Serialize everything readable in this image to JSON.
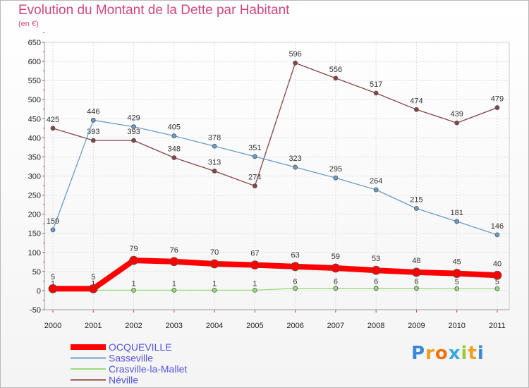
{
  "header": {
    "title": "Evolution du Montant de la Dette par Habitant",
    "subtitle": "(en €)"
  },
  "logo": {
    "text": "Proxiti"
  },
  "colors": {
    "OCQUEVILLE": "#ff0000",
    "Sasseville": "#6a9cc8",
    "Crasville-la-Mallet": "#99dd77",
    "Néville": "#884444"
  },
  "chart_data": {
    "type": "line",
    "x": [
      "2000",
      "2001",
      "2002",
      "2003",
      "2004",
      "2005",
      "2006",
      "2007",
      "2008",
      "2009",
      "2010",
      "2011"
    ],
    "ylim": [
      -50,
      650
    ],
    "yticks": [
      -50,
      0,
      50,
      100,
      150,
      200,
      250,
      300,
      350,
      400,
      450,
      500,
      550,
      600,
      650
    ],
    "grid": true,
    "legend_position": "bottom-left",
    "series": [
      {
        "name": "OCQUEVILLE",
        "values": [
          5,
          5,
          79,
          76,
          70,
          67,
          63,
          59,
          53,
          48,
          45,
          40
        ]
      },
      {
        "name": "Sasseville",
        "values": [
          159,
          446,
          429,
          405,
          378,
          351,
          323,
          295,
          264,
          215,
          181,
          146
        ]
      },
      {
        "name": "Crasville-la-Mallet",
        "values": [
          1,
          1,
          1,
          1,
          1,
          1,
          6,
          6,
          6,
          6,
          5,
          5
        ]
      },
      {
        "name": "Néville",
        "values": [
          425,
          393,
          393,
          348,
          313,
          274,
          596,
          556,
          517,
          474,
          439,
          479
        ]
      }
    ]
  }
}
